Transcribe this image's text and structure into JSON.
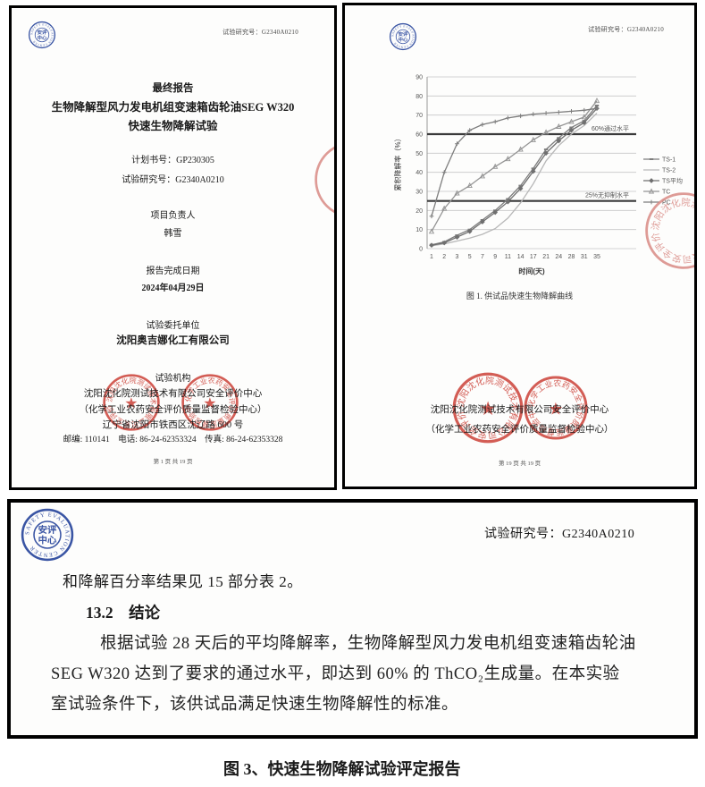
{
  "logo": {
    "cn_top": "安评",
    "cn_bottom": "中心",
    "ring": "SAFETY EVALUATION CENTER",
    "color": "#3a55a4"
  },
  "stamps": {
    "ring1": "沈阳沈化院测试技术有限公司安全评价中心",
    "ring2": "化学工业农药安全评价质量监督检验中心",
    "color": "#cc4238",
    "star": "★"
  },
  "left_page": {
    "header_report_no": "试验研究号：G2340A0210",
    "title1": "最终报告",
    "title2": "生物降解型风力发电机组变速箱齿轮油SEG W320",
    "title3": "快速生物降解试验",
    "plan_no": "计划书号：GP230305",
    "study_no": "试验研究号：G2340A0210",
    "pi_label": "项目负责人",
    "pi_name": "韩雪",
    "date_label": "报告完成日期",
    "date_value": "2024年04月29日",
    "client_label": "试验委托单位",
    "client_name": "沈阳奥吉娜化工有限公司",
    "org_label": "试验机构",
    "org_line1": "沈阳沈化院测试技术有限公司安全评价中心",
    "org_line2": "（化学工业农药安全评价质量监督检验中心）",
    "org_line3": "辽宁省沈阳市铁西区沈辽路 600 号",
    "contact_line": "邮编: 110141　电话: 86-24-62353324　传真: 86-24-62353328",
    "page_footer": "第 1 页  共 19 页"
  },
  "right_page": {
    "header_report_no": "试验研究号：G2340A0210",
    "figure_caption": "图 1.  供试品快速生物降解曲线",
    "org_line1": "沈阳沈化院测试技术有限公司安全评价中心",
    "org_line2": "（化学工业农药安全评价质量监督检验中心）",
    "page_footer": "第 19 页  共 19 页"
  },
  "chart_data": {
    "type": "line",
    "title": "",
    "xlabel": "时间(天)",
    "ylabel": "累积降解率（%）",
    "x": [
      1,
      2,
      3,
      5,
      7,
      9,
      11,
      14,
      17,
      21,
      24,
      28,
      31,
      35
    ],
    "ylim": [
      0,
      90
    ],
    "ytick_step": 10,
    "grid": true,
    "legend_position": "right",
    "reference_lines": [
      {
        "value": 60,
        "label": "60%通过水平"
      },
      {
        "value": 25,
        "label": "25%无抑制水平"
      }
    ],
    "series": [
      {
        "name": "TS-1",
        "marker": "dash",
        "color": "#7d7d7d",
        "values": [
          2,
          3.5,
          7,
          10,
          15,
          20,
          26,
          33,
          42,
          52,
          58,
          63.5,
          67,
          75
        ]
      },
      {
        "name": "TS-2",
        "marker": "none",
        "color": "#b8b8b8",
        "values": [
          1.5,
          2.5,
          4,
          5.5,
          7.5,
          10.5,
          16,
          24,
          34,
          46,
          54,
          60,
          64.5,
          71
        ]
      },
      {
        "name": "TS平均",
        "marker": "diamond",
        "color": "#6f6f6f",
        "values": [
          1.8,
          3,
          6,
          9,
          14,
          19,
          24.5,
          31.5,
          40.5,
          50,
          56.5,
          62,
          66,
          73.5
        ]
      },
      {
        "name": "TC",
        "marker": "triangle",
        "color": "#949494",
        "values": [
          9,
          21,
          29,
          33,
          38,
          43,
          47,
          52,
          57,
          61,
          64,
          66.5,
          69,
          77.5
        ]
      },
      {
        "name": "PC",
        "marker": "plus",
        "color": "#7d7d7d",
        "values": [
          17,
          40,
          55,
          62,
          65,
          66.5,
          68.5,
          69.5,
          70.5,
          71,
          71.5,
          72,
          72.5,
          73.5
        ]
      }
    ]
  },
  "bottom_section": {
    "header_report_no": "试验研究号：G2340A0210",
    "para1": "和降解百分率结果见 15 部分表 2。",
    "heading": "13.2　结论",
    "para2_line1": "根据试验 28 天后的平均降解率，生物降解型风力发电机组变速箱齿轮油",
    "para2_line2": "SEG W320 达到了要求的通过水平，即达到 60% 的 ThCO₂生成量。在本实验",
    "para2_line3": "室试验条件下，该供试品满足快速生物降解性的标准。"
  },
  "figure3_caption": "图 3、快速生物降解试验评定报告"
}
